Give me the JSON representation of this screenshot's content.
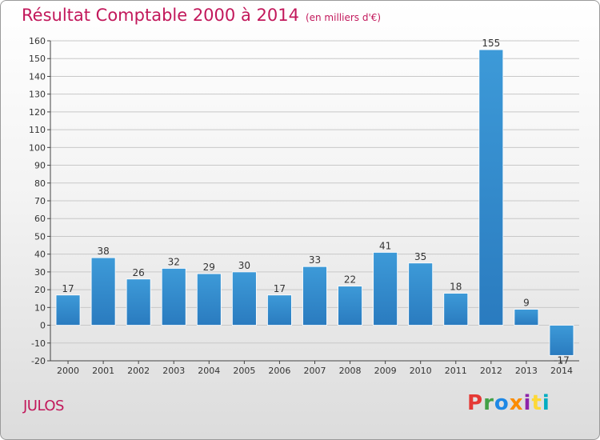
{
  "title": "Résultat Comptable 2000 à 2014",
  "unit_note": "(en milliers d'€)",
  "commune": "JULOS",
  "logo": {
    "letters": [
      "P",
      "r",
      "o",
      "x",
      "i",
      "t",
      "i"
    ],
    "colors": [
      "#e53935",
      "#43a047",
      "#1e88e5",
      "#fb8c00",
      "#8e24aa",
      "#fdd835",
      "#00acc1"
    ]
  },
  "chart_data": {
    "type": "bar",
    "categories": [
      "2000",
      "2001",
      "2002",
      "2003",
      "2004",
      "2005",
      "2006",
      "2007",
      "2008",
      "2009",
      "2010",
      "2011",
      "2012",
      "2013",
      "2014"
    ],
    "values": [
      17,
      38,
      26,
      32,
      29,
      30,
      17,
      33,
      22,
      41,
      35,
      18,
      155,
      9,
      -17
    ],
    "data_labels": [
      "17",
      "38",
      "26",
      "32",
      "29",
      "30",
      "17",
      "33",
      "22",
      "41",
      "35",
      "18",
      "155",
      "9",
      "-17"
    ],
    "ylim": [
      -20,
      160
    ],
    "yticks": [
      -20,
      -10,
      0,
      10,
      20,
      30,
      40,
      50,
      60,
      70,
      80,
      90,
      100,
      110,
      120,
      130,
      140,
      150,
      160
    ],
    "grid": true,
    "bar_color": "#3d9ad8",
    "bar_color_dark": "#2a7bbf",
    "grid_color": "#c8c8c8",
    "axis_color": "#444444",
    "title_color": "#c2185b"
  }
}
